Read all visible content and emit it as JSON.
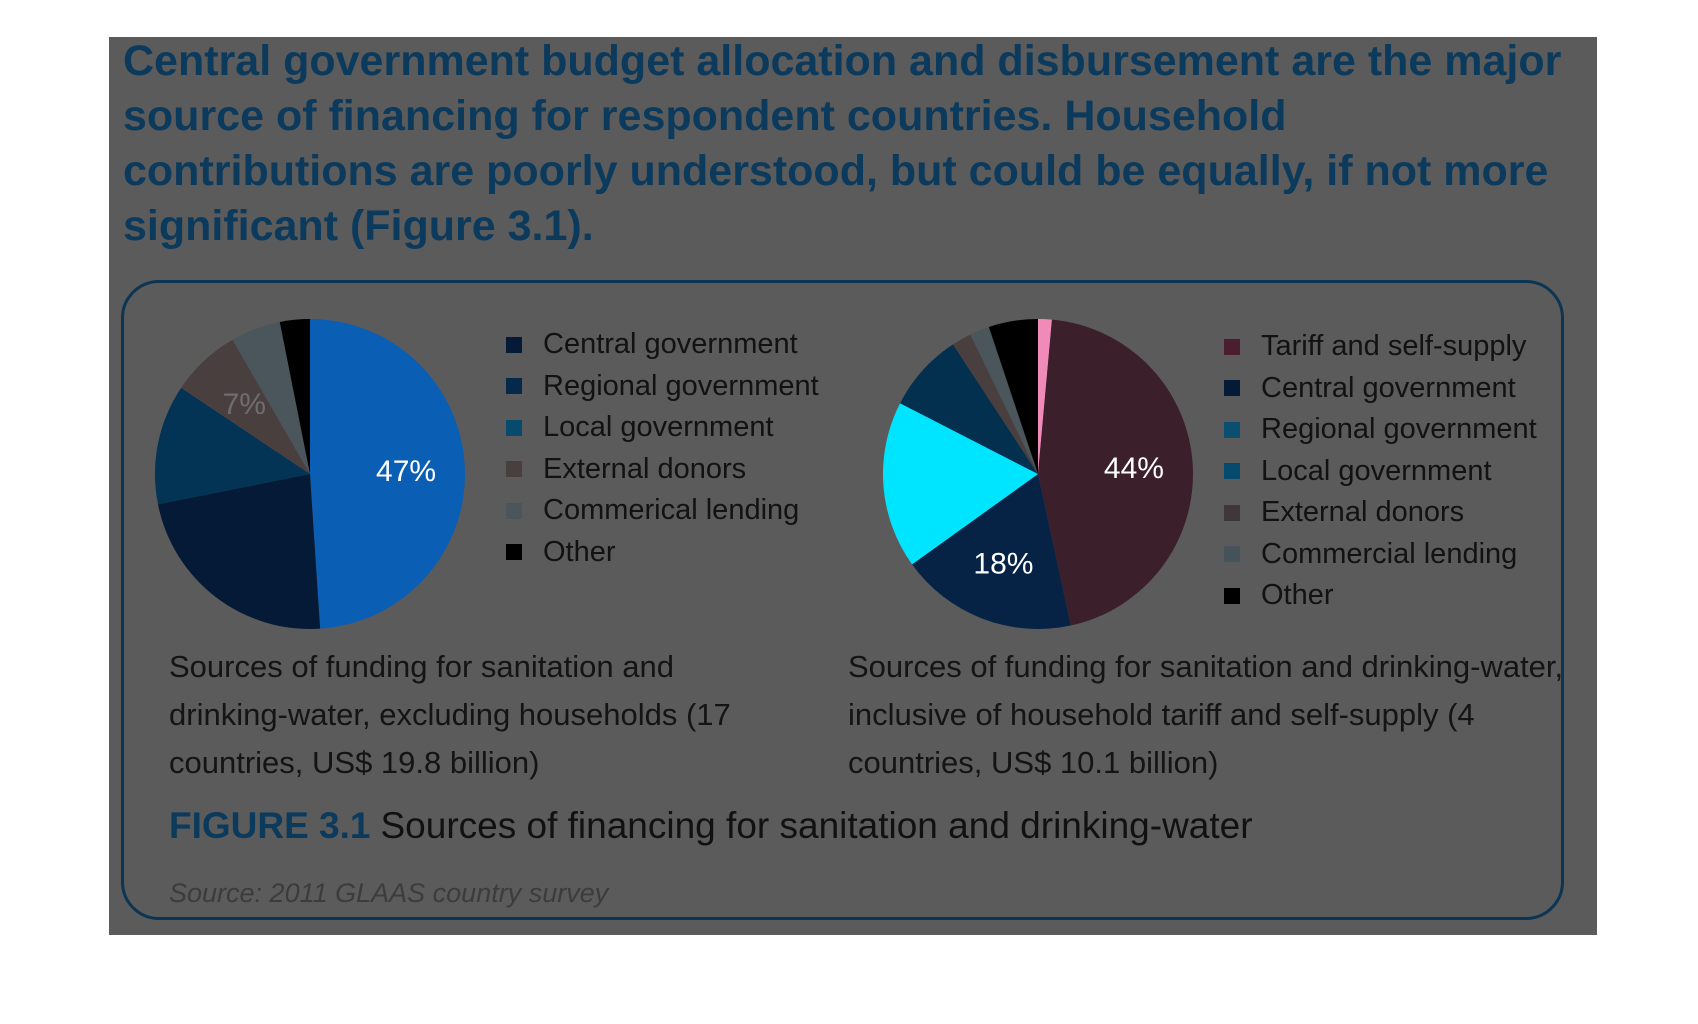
{
  "headline": "Central government budget allocation and disbursement are the major source of financing for respondent countries. Household contributions are poorly understood, but could be equally, if not more significant (Figure 3.1).",
  "figure": {
    "label": "FIGURE 3.1",
    "title": "Sources of financing for sanitation and drinking-water",
    "source": "Source: 2011 GLAAS country survey"
  },
  "chart_data": [
    {
      "type": "pie",
      "caption": "Sources of funding for sanitation and drinking-water, excluding households (17 countries, US$ 19.8 billion)",
      "slices": [
        {
          "name": "Central government",
          "value": 47,
          "label": "47%",
          "color": "#0a5fb4"
        },
        {
          "name": "Regional government",
          "value": 22,
          "label": "",
          "color": "#041a36"
        },
        {
          "name": "Local government",
          "value": 12,
          "label": "",
          "color": "#033456"
        },
        {
          "name": "External donors",
          "value": 7,
          "label": "7%",
          "color": "#4a3f3f"
        },
        {
          "name": "Commerical lending",
          "value": 5,
          "label": "",
          "color": "#4b555c"
        },
        {
          "name": "Other",
          "value": 3,
          "label": "",
          "color": "#000000"
        }
      ],
      "legend": [
        "Central government",
        "Regional government",
        "Local government",
        "External donors",
        "Commerical lending",
        "Other"
      ],
      "legend_colors": [
        "#041a36",
        "#06284a",
        "#08496e",
        "#4a3f3f",
        "#4b555c",
        "#000000"
      ]
    },
    {
      "type": "pie",
      "caption": "Sources of funding for sanitation and drinking-water, inclusive of household tariff and self-supply (4 countries, US$ 10.1 billion)",
      "slices": [
        {
          "name": "Pink segment",
          "value": 1.4,
          "label": "",
          "color": "#f08ab8"
        },
        {
          "name": "Tariff and self-supply",
          "value": 44,
          "label": "44%",
          "color": "#3b1f2a"
        },
        {
          "name": "Central government",
          "value": 18,
          "label": "18%",
          "color": "#062346"
        },
        {
          "name": "Regional government",
          "value": 17,
          "label": "",
          "color": "#00e5ff"
        },
        {
          "name": "Local government",
          "value": 8,
          "label": "",
          "color": "#04304f"
        },
        {
          "name": "External donors",
          "value": 2,
          "label": "",
          "color": "#4a3f3f"
        },
        {
          "name": "Commercial lending",
          "value": 2,
          "label": "",
          "color": "#4b555c"
        },
        {
          "name": "Other",
          "value": 5,
          "label": "",
          "color": "#000000"
        }
      ],
      "legend": [
        "Tariff and self-supply",
        "Central government",
        "Regional government",
        "Local government",
        "External donors",
        "Commercial lending",
        "Other"
      ],
      "legend_colors": [
        "#4a1e2e",
        "#041a36",
        "#0a4f70",
        "#08496e",
        "#3f3838",
        "#46525a",
        "#000000"
      ]
    }
  ]
}
